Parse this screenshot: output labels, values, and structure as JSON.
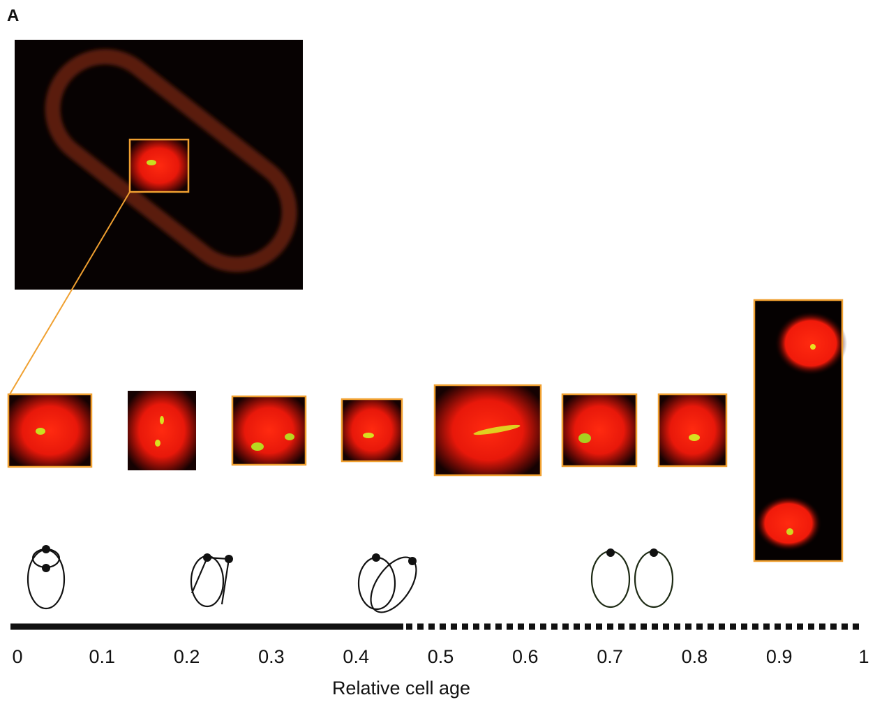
{
  "panel_label": "A",
  "axis": {
    "label": "Relative cell age",
    "ticks": [
      0,
      0.1,
      0.2,
      0.3,
      0.4,
      0.5,
      0.6,
      0.7,
      0.8,
      0.9,
      1
    ]
  }
}
